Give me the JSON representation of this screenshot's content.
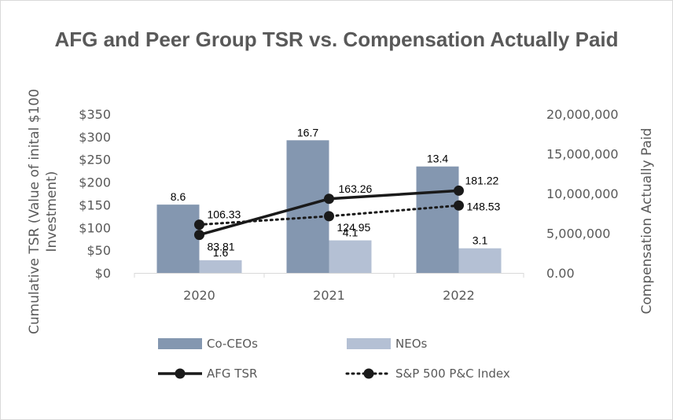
{
  "chart_data": {
    "type": "bar",
    "title": "AFG and Peer Group TSR vs. Compensation Actually Paid",
    "categories": [
      "2020",
      "2021",
      "2022"
    ],
    "ylabel_left": [
      "Cumulative TSR (Value of inital $100",
      "Investment)"
    ],
    "ylabel_right": "Compensation Actually Paid",
    "y_left_range": [
      0,
      350
    ],
    "y_left_ticks": [
      "$0",
      "$50",
      "$100",
      "$150",
      "$200",
      "$250",
      "$300",
      "$350"
    ],
    "y_right_range": [
      0,
      20000000
    ],
    "y_right_ticks": [
      "0.00",
      "5,000,000",
      "10,000,000",
      "15,000,000",
      "20,000,000"
    ],
    "grid": false,
    "legend_position": "bottom",
    "series": [
      {
        "name": "Co-CEOs",
        "type": "bar",
        "axis": "right",
        "color": "#8497b0",
        "values": [
          8600000,
          16700000,
          13400000
        ],
        "labels": [
          "8.6",
          "16.7",
          "13.4"
        ]
      },
      {
        "name": "NEOs",
        "type": "bar",
        "axis": "right",
        "color": "#b4c0d4",
        "values": [
          1600000,
          4100000,
          3100000
        ],
        "labels": [
          "1.6",
          "4.1",
          "3.1"
        ]
      },
      {
        "name": "AFG TSR",
        "type": "line",
        "axis": "left",
        "style": "solid",
        "color": "#1a1a1a",
        "values": [
          83.81,
          163.26,
          181.22
        ],
        "labels": [
          "83.81",
          "163.26",
          "181.22"
        ]
      },
      {
        "name": "S&P 500 P&C Index",
        "type": "line",
        "axis": "left",
        "style": "dotted",
        "color": "#1a1a1a",
        "values": [
          106.33,
          124.95,
          148.53
        ],
        "labels": [
          "106.33",
          "124.95",
          "148.53"
        ]
      }
    ]
  }
}
